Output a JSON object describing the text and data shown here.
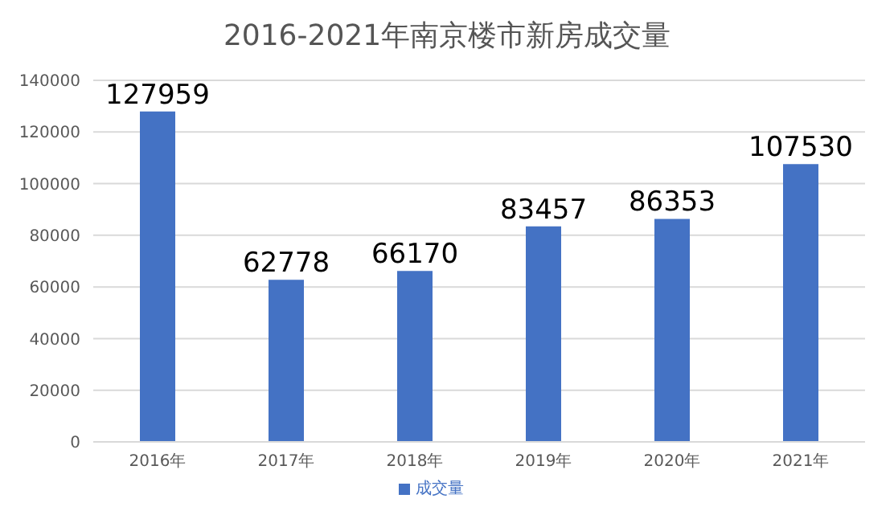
{
  "chart_data": {
    "type": "bar",
    "title": "2016-2021年南京楼市新房成交量",
    "categories": [
      "2016年",
      "2017年",
      "2018年",
      "2019年",
      "2020年",
      "2021年"
    ],
    "series": [
      {
        "name": "成交量",
        "color": "#4472c4",
        "values": [
          127959,
          62778,
          66170,
          83457,
          86353,
          107530
        ]
      }
    ],
    "ylim": [
      0,
      140000
    ],
    "yticks": [
      0,
      20000,
      40000,
      60000,
      80000,
      100000,
      120000,
      140000
    ],
    "grid": "y",
    "legend": "bottom",
    "data_labels": true
  }
}
